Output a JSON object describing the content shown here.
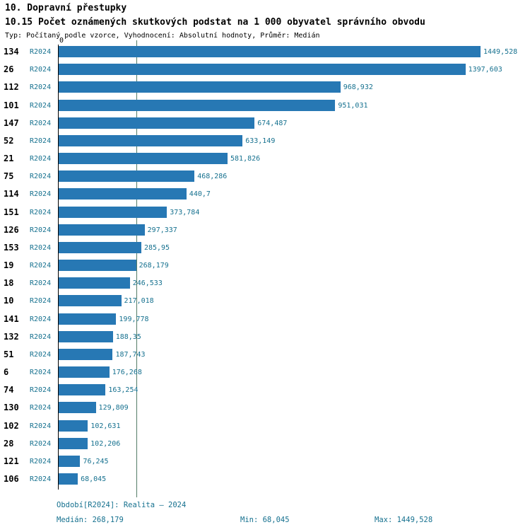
{
  "header": {
    "title": "10. Dopravní přestupky",
    "subtitle": "10.15 Počet oznámených skutkových podstat na 1 000 obyvatel správního obvodu",
    "meta": "Typ: Počítaný podle vzorce, Vyhodnocení: Absolutní hodnoty, Průměr: Medián"
  },
  "chart_data": {
    "type": "bar",
    "orientation": "horizontal",
    "zero_label": "0",
    "period_label": "R2024",
    "xlim": [
      0,
      1449.528
    ],
    "max_value": 1449.528,
    "median_value": 268.179,
    "rows": [
      {
        "code": "134",
        "period": "R2024",
        "value": 1449.528,
        "label": "1449,528"
      },
      {
        "code": "26",
        "period": "R2024",
        "value": 1397.603,
        "label": "1397,603"
      },
      {
        "code": "112",
        "period": "R2024",
        "value": 968.932,
        "label": "968,932"
      },
      {
        "code": "101",
        "period": "R2024",
        "value": 951.031,
        "label": "951,031"
      },
      {
        "code": "147",
        "period": "R2024",
        "value": 674.487,
        "label": "674,487"
      },
      {
        "code": "52",
        "period": "R2024",
        "value": 633.149,
        "label": "633,149"
      },
      {
        "code": "21",
        "period": "R2024",
        "value": 581.826,
        "label": "581,826"
      },
      {
        "code": "75",
        "period": "R2024",
        "value": 468.286,
        "label": "468,286"
      },
      {
        "code": "114",
        "period": "R2024",
        "value": 440.7,
        "label": "440,7"
      },
      {
        "code": "151",
        "period": "R2024",
        "value": 373.784,
        "label": "373,784"
      },
      {
        "code": "126",
        "period": "R2024",
        "value": 297.337,
        "label": "297,337"
      },
      {
        "code": "153",
        "period": "R2024",
        "value": 285.95,
        "label": "285,95"
      },
      {
        "code": "19",
        "period": "R2024",
        "value": 268.179,
        "label": "268,179"
      },
      {
        "code": "18",
        "period": "R2024",
        "value": 246.533,
        "label": "246,533"
      },
      {
        "code": "10",
        "period": "R2024",
        "value": 217.018,
        "label": "217,018"
      },
      {
        "code": "141",
        "period": "R2024",
        "value": 199.778,
        "label": "199,778"
      },
      {
        "code": "132",
        "period": "R2024",
        "value": 188.35,
        "label": "188,35"
      },
      {
        "code": "51",
        "period": "R2024",
        "value": 187.743,
        "label": "187,743"
      },
      {
        "code": "6",
        "period": "R2024",
        "value": 176.268,
        "label": "176,268"
      },
      {
        "code": "74",
        "period": "R2024",
        "value": 163.254,
        "label": "163,254"
      },
      {
        "code": "130",
        "period": "R2024",
        "value": 129.809,
        "label": "129,809"
      },
      {
        "code": "102",
        "period": "R2024",
        "value": 102.631,
        "label": "102,631"
      },
      {
        "code": "28",
        "period": "R2024",
        "value": 102.206,
        "label": "102,206"
      },
      {
        "code": "121",
        "period": "R2024",
        "value": 76.245,
        "label": "76,245"
      },
      {
        "code": "106",
        "period": "R2024",
        "value": 68.045,
        "label": "68,045"
      }
    ]
  },
  "footer": {
    "period": "Období[R2024]: Realita – 2024",
    "median": "Medián: 268,179",
    "min": "Min: 68,045",
    "max": "Max: 1449,528"
  },
  "colors": {
    "bar": "#2778b4",
    "text_accent": "#16718f",
    "median_line": "#557d68",
    "axis": "#000000"
  }
}
